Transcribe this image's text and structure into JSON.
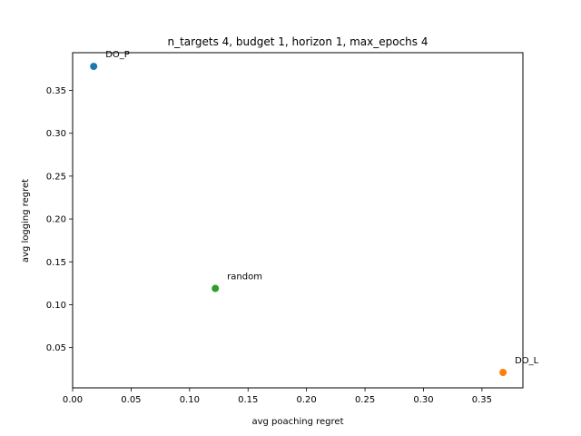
{
  "chart_data": {
    "type": "scatter",
    "title": "n_targets 4, budget 1, horizon 1, max_epochs 4",
    "xlabel": "avg poaching regret",
    "ylabel": "avg logging regret",
    "xlim": [
      0.0,
      0.385
    ],
    "ylim": [
      0.003,
      0.394
    ],
    "xticks": [
      0.0,
      0.05,
      0.1,
      0.15,
      0.2,
      0.25,
      0.3,
      0.35
    ],
    "xtick_labels": [
      "0.00",
      "0.05",
      "0.10",
      "0.15",
      "0.20",
      "0.25",
      "0.30",
      "0.35"
    ],
    "yticks": [
      0.05,
      0.1,
      0.15,
      0.2,
      0.25,
      0.3,
      0.35
    ],
    "ytick_labels": [
      "0.05",
      "0.10",
      "0.15",
      "0.20",
      "0.25",
      "0.30",
      "0.35"
    ],
    "grid": false,
    "points": [
      {
        "label": "DO_P",
        "x": 0.018,
        "y": 0.378,
        "color": "#1f77b4"
      },
      {
        "label": "DO_L",
        "x": 0.368,
        "y": 0.021,
        "color": "#ff7f0e"
      },
      {
        "label": "random",
        "x": 0.122,
        "y": 0.119,
        "color": "#2ca02c"
      }
    ]
  }
}
